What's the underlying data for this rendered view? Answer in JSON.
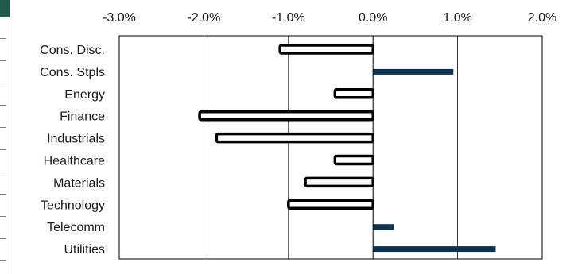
{
  "chart_data": {
    "type": "bar",
    "orientation": "horizontal",
    "categories": [
      "Cons. Disc.",
      "Cons. Stpls",
      "Energy",
      "Finance",
      "Industrials",
      "Healthcare",
      "Materials",
      "Technology",
      "Telecomm",
      "Utilities"
    ],
    "values": [
      -1.1,
      0.95,
      -0.45,
      -2.05,
      -1.85,
      -0.45,
      -0.8,
      -1.0,
      0.25,
      1.45
    ],
    "x_tick_labels": [
      "-3.0%",
      "-2.0%",
      "-1.0%",
      "0.0%",
      "1.0%",
      "2.0%"
    ],
    "x_ticks": [
      -3.0,
      -2.0,
      -1.0,
      0.0,
      1.0,
      2.0
    ],
    "xlim": [
      -3.0,
      2.0
    ],
    "x_axis_position": "top",
    "grid": true,
    "title": "",
    "xlabel": "",
    "ylabel": "",
    "colors": {
      "positive_fill": "#0d3350",
      "negative_fill": "#ffffff",
      "negative_stroke": "#000000",
      "grid": "#000000",
      "strip_accent": "#1f5a4a"
    }
  }
}
